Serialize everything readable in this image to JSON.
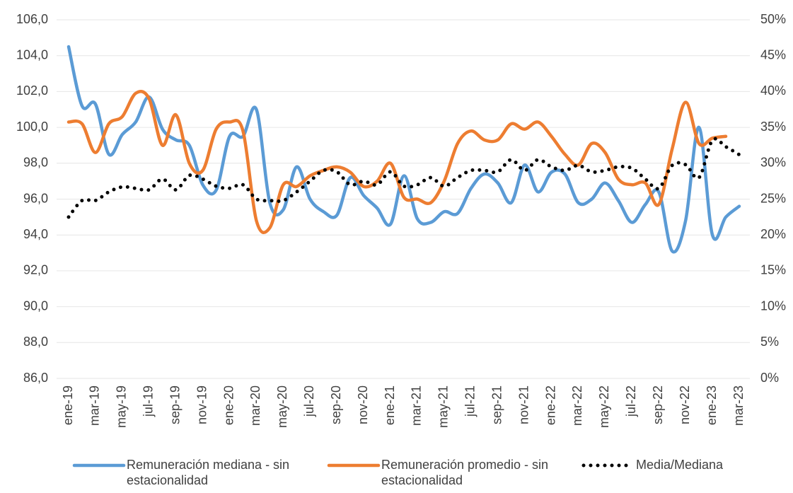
{
  "chart_data": {
    "type": "line",
    "categories": [
      "ene-19",
      null,
      "mar-19",
      null,
      "may-19",
      null,
      "jul-19",
      null,
      "sep-19",
      null,
      "nov-19",
      null,
      "ene-20",
      null,
      "mar-20",
      null,
      "may-20",
      null,
      "jul-20",
      null,
      "sep-20",
      null,
      "nov-20",
      null,
      "ene-21",
      null,
      "mar-21",
      null,
      "may-21",
      null,
      "jul-21",
      null,
      "sep-21",
      null,
      "nov-21",
      null,
      "ene-22",
      null,
      "mar-22",
      null,
      "may-22",
      null,
      "jul-22",
      null,
      "sep-22",
      null,
      "nov-22",
      null,
      "ene-23",
      null,
      "mar-23"
    ],
    "series": [
      {
        "name": "Remuneración mediana - sin estacionalidad",
        "color": "#5b9bd5",
        "style": "solid",
        "values": [
          104.5,
          101.2,
          101.3,
          98.5,
          99.6,
          100.3,
          101.7,
          99.9,
          99.3,
          99.0,
          96.8,
          96.5,
          99.5,
          99.5,
          101.0,
          95.8,
          95.4,
          97.8,
          96.0,
          95.3,
          95.1,
          97.2,
          96.2,
          95.5,
          94.6,
          97.3,
          94.9,
          94.7,
          95.3,
          95.2,
          96.6,
          97.4,
          96.9,
          95.8,
          97.9,
          96.4,
          97.5,
          97.4,
          95.8,
          96.0,
          96.9,
          95.9,
          94.7,
          95.7,
          96.4,
          93.1,
          94.8,
          100.0,
          94.0,
          95.0,
          95.6
        ]
      },
      {
        "name": "Remuneración promedio - sin estacionalidad",
        "color": "#ed7d31",
        "style": "solid",
        "values": [
          100.3,
          100.2,
          98.6,
          100.2,
          100.6,
          101.9,
          101.6,
          99.0,
          100.7,
          98.0,
          97.6,
          99.9,
          100.3,
          99.8,
          94.8,
          94.4,
          96.8,
          96.7,
          97.3,
          97.6,
          97.8,
          97.5,
          96.7,
          97.0,
          98.0,
          96.1,
          96.0,
          95.8,
          97.0,
          99.1,
          99.8,
          99.3,
          99.3,
          100.2,
          99.9,
          100.3,
          99.5,
          98.5,
          97.9,
          99.1,
          98.6,
          97.1,
          96.8,
          96.9,
          95.7,
          98.8,
          101.4,
          99.1,
          99.4,
          99.5,
          null
        ]
      },
      {
        "name": "Media/Mediana",
        "color": "#000000",
        "style": "dotted",
        "axis": "y2",
        "values": [
          22.5,
          24.8,
          24.8,
          26.0,
          26.7,
          26.5,
          26.3,
          27.8,
          26.3,
          28.3,
          27.8,
          26.8,
          26.5,
          27.0,
          25.0,
          24.8,
          24.8,
          26.0,
          27.5,
          29.0,
          28.8,
          27.0,
          27.5,
          27.0,
          28.8,
          26.8,
          27.0,
          28.0,
          26.8,
          28.0,
          29.0,
          29.0,
          28.8,
          30.5,
          29.0,
          30.5,
          29.5,
          29.0,
          29.7,
          28.8,
          29.0,
          29.5,
          29.3,
          27.8,
          26.5,
          29.7,
          29.8,
          28.0,
          33.2,
          32.3,
          31.2
        ]
      }
    ],
    "ylim": [
      86,
      106
    ],
    "yticks": [
      {
        "value": 86,
        "label": "86,0"
      },
      {
        "value": 88,
        "label": "88,0"
      },
      {
        "value": 90,
        "label": "90,0"
      },
      {
        "value": 92,
        "label": "92,0"
      },
      {
        "value": 94,
        "label": "94,0"
      },
      {
        "value": 96,
        "label": "96,0"
      },
      {
        "value": 98,
        "label": "98,0"
      },
      {
        "value": 100,
        "label": "100,0"
      },
      {
        "value": 102,
        "label": "102,0"
      },
      {
        "value": 104,
        "label": "104,0"
      },
      {
        "value": 106,
        "label": "106,0"
      }
    ],
    "y2lim": [
      0,
      50
    ],
    "y2ticks": [
      {
        "value": 0,
        "label": "0%"
      },
      {
        "value": 5,
        "label": "5%"
      },
      {
        "value": 10,
        "label": "10%"
      },
      {
        "value": 15,
        "label": "15%"
      },
      {
        "value": 20,
        "label": "20%"
      },
      {
        "value": 25,
        "label": "25%"
      },
      {
        "value": 30,
        "label": "30%"
      },
      {
        "value": 35,
        "label": "35%"
      },
      {
        "value": 40,
        "label": "40%"
      },
      {
        "value": 45,
        "label": "45%"
      },
      {
        "value": 50,
        "label": "50%"
      }
    ],
    "grid": true,
    "legend": "bottom"
  }
}
